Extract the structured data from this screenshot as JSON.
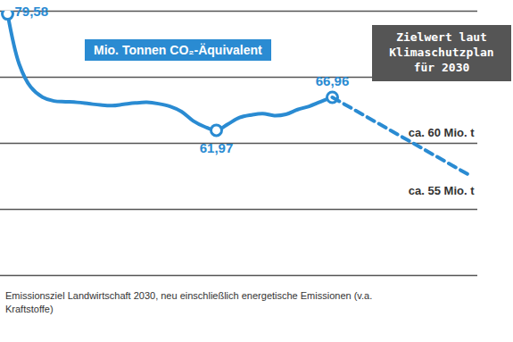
{
  "chart_data": {
    "type": "line",
    "title": "Mio. Tonnen CO₂-Äquivalent",
    "caption": "Emissionsziel Landwirtschaft 2030, neu einschließlich energetische Emissionen (v.a. Kraftstoffe)",
    "categories": [
      null,
      null,
      null,
      null,
      null,
      null,
      null,
      null,
      null,
      null,
      null,
      null,
      null,
      null,
      null,
      null,
      null,
      null,
      null,
      null,
      null,
      null,
      null,
      null,
      null,
      null,
      null,
      null,
      null,
      null,
      null,
      null,
      null,
      null,
      null,
      null,
      null,
      null,
      null,
      null,
      null
    ],
    "series": [
      {
        "color": "#2a8bd2",
        "line_style": "solid",
        "marker": "circle",
        "values": [
          79.58,
          72.0,
          68.5,
          67.0,
          66.4,
          66.3,
          66.2,
          66.0,
          65.8,
          65.7,
          65.9,
          66.1,
          66.2,
          66.0,
          65.6,
          64.8,
          63.4,
          62.5,
          61.97,
          62.9,
          63.9,
          64.3,
          64.5,
          64.2,
          64.4,
          65.1,
          65.6,
          66.3,
          66.96,
          null,
          null,
          null,
          null,
          null,
          null,
          null,
          null,
          null,
          null,
          null,
          null
        ],
        "value_labels": [
          "79,58",
          null,
          null,
          null,
          null,
          null,
          null,
          null,
          null,
          null,
          null,
          null,
          null,
          null,
          null,
          null,
          null,
          null,
          "61,97",
          null,
          null,
          null,
          null,
          null,
          null,
          null,
          null,
          null,
          "66,96",
          null,
          null,
          null,
          null,
          null,
          null,
          null,
          null,
          null,
          null,
          null,
          null
        ]
      },
      {
        "color": "#2a8bd2",
        "line_style": "dashed",
        "values": [
          null,
          null,
          null,
          null,
          null,
          null,
          null,
          null,
          null,
          null,
          null,
          null,
          null,
          null,
          null,
          null,
          null,
          null,
          null,
          null,
          null,
          null,
          null,
          null,
          null,
          null,
          null,
          null,
          66.96,
          null,
          null,
          null,
          null,
          null,
          null,
          null,
          null,
          null,
          null,
          null,
          55
        ]
      }
    ],
    "annotations": [
      {
        "text": "Zielwert laut Klimaschutzplan für 2030"
      },
      {
        "text": "ca. 60 Mio. t",
        "value": 60
      },
      {
        "text": "ca. 55 Mio. t",
        "value": 55
      }
    ],
    "ylim": [
      40,
      80
    ],
    "yticks": [
      40,
      50,
      60,
      70,
      80
    ],
    "grid": true,
    "data_labels": true,
    "tick_labels": false
  }
}
